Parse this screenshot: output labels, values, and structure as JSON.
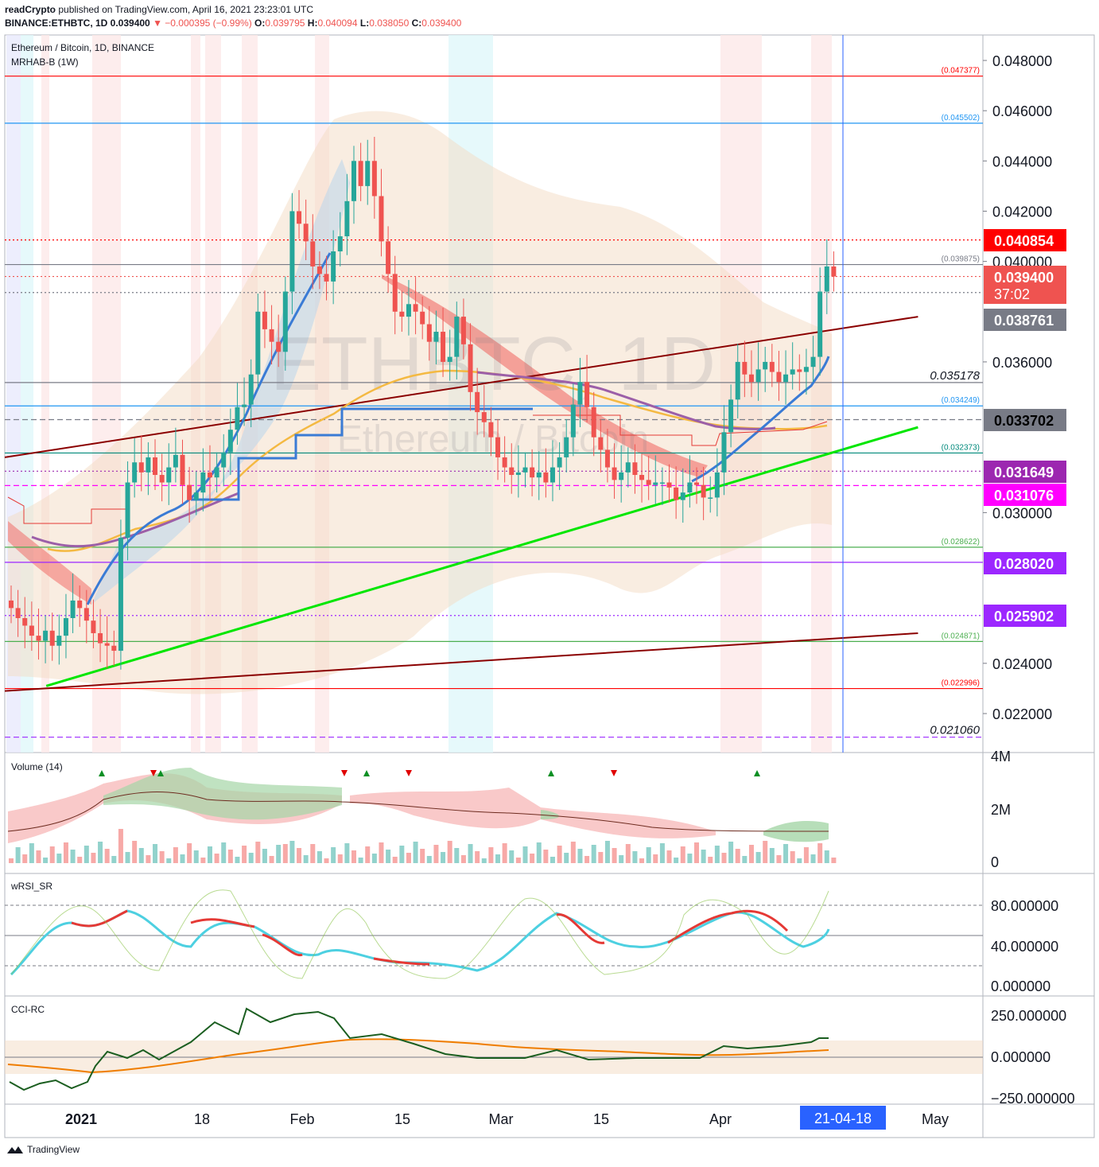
{
  "header": {
    "publisher": "readCrypto",
    "published_text": "published on TradingView.com, April 16, 2021 23:23:01 UTC",
    "symbol_line": "BINANCE:ETHBTC, 1D 0.039400",
    "change": "▼ −0.000395 (−0.99%)",
    "O": "0.039795",
    "H": "0.040094",
    "L": "0.038050",
    "C": "0.039400"
  },
  "legend": {
    "title": "Ethereum / Bitcoin, 1D, BINANCE",
    "indicator": "MRHAB-B (1W)"
  },
  "watermark": {
    "big": "ETHBTC, 1D",
    "small": "Ethereum / Bitcoin"
  },
  "panes": {
    "volume": "Volume (14)",
    "wrsi": "wRSI_SR",
    "cci": "CCI-RC"
  },
  "footer": {
    "brand": "TradingView"
  },
  "colors": {
    "up": "#26a69a",
    "down": "#ef5350",
    "green_trend": "#00e600",
    "brown_trend": "#8b0000",
    "accent_blue": "#2962ff"
  },
  "chart_data": {
    "type": "candlestick",
    "symbol": "ETHBTC",
    "timeframe": "1D",
    "price_axis": {
      "ticks": [
        "0.048000",
        "0.046000",
        "0.044000",
        "0.042000",
        "0.040000",
        "0.036000",
        "0.030000",
        "0.024000",
        "0.022000"
      ],
      "range": [
        0.0205,
        0.0492
      ]
    },
    "x_axis": {
      "ticks": [
        "2021",
        "18",
        "Feb",
        "15",
        "Mar",
        "15",
        "Apr",
        "May"
      ],
      "cursor_label": "21-04-18"
    },
    "price_labels": [
      {
        "value": "0.040854",
        "bg": "#ff0000",
        "fg": "#ffffff"
      },
      {
        "value": "0.039400",
        "extra": "37:02",
        "bg": "#ef5350",
        "fg": "#ffffff"
      },
      {
        "value": "0.038761",
        "bg": "#787b86",
        "fg": "#ffffff"
      },
      {
        "value": "0.033702",
        "bg": "#787b86",
        "fg": "#000000"
      },
      {
        "value": "0.031649",
        "bg": "#9c27b0",
        "fg": "#ffffff"
      },
      {
        "value": "0.031076",
        "bg": "#ff00ff",
        "fg": "#ffffff"
      },
      {
        "value": "0.028020",
        "bg": "#9c27ff",
        "fg": "#ffffff"
      },
      {
        "value": "0.025902",
        "bg": "#9c27ff",
        "fg": "#ffffff"
      }
    ],
    "level_lines": [
      {
        "value": 0.047377,
        "label": "(0.047377)",
        "color": "#ff0000",
        "style": "solid"
      },
      {
        "value": 0.045502,
        "label": "(0.045502)",
        "color": "#2196f3",
        "style": "solid"
      },
      {
        "value": 0.040854,
        "color": "#ff0000",
        "style": "dotted"
      },
      {
        "value": 0.039875,
        "label": "(0.039875)",
        "color": "#787b86",
        "style": "solid"
      },
      {
        "value": 0.0394,
        "color": "#ef5350",
        "style": "dotted"
      },
      {
        "value": 0.038761,
        "color": "#787b86",
        "style": "dotted"
      },
      {
        "value": 0.035178,
        "label": "0.035178",
        "color": "#787b86",
        "style": "solid",
        "italic": true
      },
      {
        "value": 0.034249,
        "label": "(0.034249)",
        "color": "#2196f3",
        "style": "solid"
      },
      {
        "value": 0.033702,
        "color": "#787b86",
        "style": "dashed"
      },
      {
        "value": 0.032373,
        "label": "(0.032373)",
        "color": "#00897b",
        "style": "solid"
      },
      {
        "value": 0.031649,
        "color": "#9c27b0",
        "style": "dotted"
      },
      {
        "value": 0.031076,
        "color": "#ff00ff",
        "style": "dashed"
      },
      {
        "value": 0.028622,
        "label": "(0.028622)",
        "color": "#4caf50",
        "style": "solid"
      },
      {
        "value": 0.02802,
        "color": "#9c27ff",
        "style": "solid"
      },
      {
        "value": 0.025902,
        "color": "#9c27ff",
        "style": "dotted"
      },
      {
        "value": 0.024871,
        "label": "(0.024871)",
        "color": "#4caf50",
        "style": "solid"
      },
      {
        "value": 0.022996,
        "label": "(0.022996)",
        "color": "#ff0000",
        "style": "solid"
      },
      {
        "value": 0.02106,
        "label": "0.021060",
        "color": "#9c27ff",
        "style": "dashed",
        "italic": true
      }
    ],
    "trend_lines": [
      {
        "name": "green-support",
        "from": [
          "2020-12-25",
          0.0231
        ],
        "to": [
          "2021-04-30",
          0.0334
        ],
        "color": "#00e600"
      },
      {
        "name": "brown-upper",
        "from": [
          "2020-12-19",
          0.0322
        ],
        "to": [
          "2021-04-30",
          0.0378
        ],
        "color": "#8b0000"
      },
      {
        "name": "brown-lower",
        "from": [
          "2020-12-19",
          0.0229
        ],
        "to": [
          "2021-04-30",
          0.0252
        ],
        "color": "#8b0000"
      }
    ],
    "volume_axis": {
      "ticks": [
        "4M",
        "2M",
        "0"
      ]
    },
    "wrsi_axis": {
      "ticks": [
        "80.000000",
        "40.000000",
        "0.000000"
      ]
    },
    "cci_axis": {
      "ticks": [
        "250.000000",
        "0.000000",
        "−250.000000"
      ]
    }
  }
}
